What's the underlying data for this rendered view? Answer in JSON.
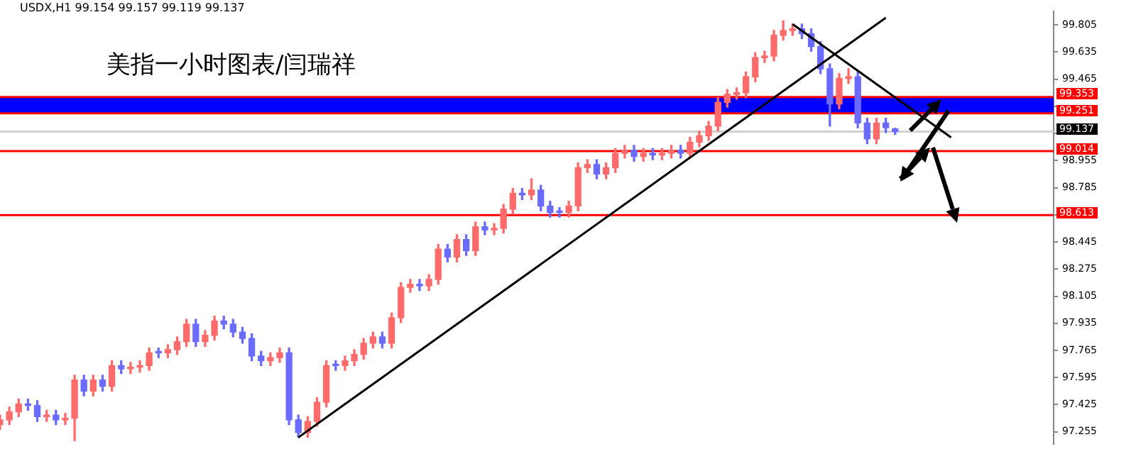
{
  "chart_data": {
    "type": "candlestick",
    "title": "美指一小时图表/闫瑞祥",
    "subtitle": "USDX,H1 99.154 99.157 99.119 99.137",
    "categories": [
      null,
      null,
      null,
      null,
      null,
      null,
      null,
      null,
      null,
      null,
      null,
      null,
      null,
      null,
      null,
      null,
      null,
      null,
      null,
      null,
      null,
      null,
      null,
      null,
      null,
      null,
      null,
      null,
      null,
      null,
      null,
      null,
      null,
      null,
      null,
      null,
      null,
      null,
      null,
      null,
      null,
      null,
      null,
      null,
      null,
      null,
      null,
      null,
      null,
      null,
      null,
      null,
      null,
      null,
      null,
      null,
      null,
      null,
      null,
      null,
      null,
      null,
      null,
      null,
      null,
      null,
      null,
      null,
      null,
      null,
      null,
      null,
      null,
      null,
      null,
      null,
      null,
      null,
      null,
      null,
      null,
      null,
      null,
      null,
      null,
      null,
      null,
      null,
      null,
      null,
      null,
      null,
      null,
      null,
      null,
      null,
      null,
      null,
      null,
      null,
      null,
      null,
      null,
      null,
      null,
      null,
      null,
      null,
      null,
      null,
      null,
      null,
      null,
      null
    ],
    "ohlc": [
      [
        97.3,
        97.36,
        97.27,
        97.33
      ],
      [
        97.33,
        97.41,
        97.3,
        97.38
      ],
      [
        97.38,
        97.46,
        97.35,
        97.43
      ],
      [
        97.43,
        97.46,
        97.39,
        97.42
      ],
      [
        97.42,
        97.45,
        97.32,
        97.35
      ],
      [
        97.35,
        97.39,
        97.32,
        97.36
      ],
      [
        97.36,
        97.39,
        97.3,
        97.33
      ],
      [
        97.33,
        97.37,
        97.3,
        97.34
      ],
      [
        97.34,
        97.61,
        97.2,
        97.58
      ],
      [
        97.58,
        97.61,
        97.48,
        97.51
      ],
      [
        97.51,
        97.61,
        97.48,
        97.58
      ],
      [
        97.58,
        97.61,
        97.51,
        97.54
      ],
      [
        97.54,
        97.7,
        97.51,
        97.67
      ],
      [
        97.67,
        97.7,
        97.62,
        97.65
      ],
      [
        97.65,
        97.69,
        97.62,
        97.66
      ],
      [
        97.66,
        97.7,
        97.63,
        97.67
      ],
      [
        97.67,
        97.78,
        97.64,
        97.75
      ],
      [
        97.75,
        97.78,
        97.72,
        97.75
      ],
      [
        97.75,
        97.8,
        97.72,
        97.77
      ],
      [
        97.77,
        97.85,
        97.74,
        97.82
      ],
      [
        97.82,
        97.96,
        97.79,
        97.93
      ],
      [
        97.93,
        97.96,
        97.79,
        97.82
      ],
      [
        97.82,
        97.89,
        97.79,
        97.86
      ],
      [
        97.86,
        97.98,
        97.83,
        97.95
      ],
      [
        97.95,
        97.98,
        97.9,
        97.93
      ],
      [
        97.93,
        97.96,
        97.85,
        97.88
      ],
      [
        97.88,
        97.91,
        97.81,
        97.84
      ],
      [
        97.84,
        97.87,
        97.7,
        97.73
      ],
      [
        97.73,
        97.76,
        97.67,
        97.7
      ],
      [
        97.7,
        97.75,
        97.67,
        97.72
      ],
      [
        97.72,
        97.78,
        97.69,
        97.75
      ],
      [
        97.75,
        97.78,
        97.3,
        97.33
      ],
      [
        97.33,
        97.36,
        97.22,
        97.25
      ],
      [
        97.25,
        97.35,
        97.22,
        97.32
      ],
      [
        97.32,
        97.47,
        97.29,
        97.44
      ],
      [
        97.44,
        97.7,
        97.41,
        97.67
      ],
      [
        97.67,
        97.7,
        97.64,
        97.67
      ],
      [
        97.67,
        97.73,
        97.64,
        97.7
      ],
      [
        97.7,
        97.77,
        97.67,
        97.74
      ],
      [
        97.74,
        97.84,
        97.71,
        97.81
      ],
      [
        97.81,
        97.88,
        97.78,
        97.85
      ],
      [
        97.85,
        97.88,
        97.78,
        97.81
      ],
      [
        97.81,
        98.0,
        97.78,
        97.97
      ],
      [
        97.97,
        98.19,
        97.94,
        98.16
      ],
      [
        98.16,
        98.21,
        98.13,
        98.18
      ],
      [
        98.18,
        98.21,
        98.14,
        98.17
      ],
      [
        98.17,
        98.24,
        98.14,
        98.21
      ],
      [
        98.21,
        98.43,
        98.18,
        98.4
      ],
      [
        98.4,
        98.43,
        98.32,
        98.35
      ],
      [
        98.35,
        98.49,
        98.32,
        98.46
      ],
      [
        98.46,
        98.49,
        98.36,
        98.39
      ],
      [
        98.39,
        98.57,
        98.36,
        98.54
      ],
      [
        98.54,
        98.57,
        98.49,
        98.52
      ],
      [
        98.52,
        98.56,
        98.49,
        98.53
      ],
      [
        98.53,
        98.68,
        98.5,
        98.65
      ],
      [
        98.65,
        98.78,
        98.62,
        98.75
      ],
      [
        98.75,
        98.78,
        98.71,
        98.74
      ],
      [
        98.74,
        98.84,
        98.71,
        98.77
      ],
      [
        98.77,
        98.8,
        98.64,
        98.67
      ],
      [
        98.67,
        98.7,
        98.6,
        98.63
      ],
      [
        98.63,
        98.66,
        98.6,
        98.63
      ],
      [
        98.63,
        98.7,
        98.6,
        98.67
      ],
      [
        98.67,
        98.94,
        98.64,
        98.91
      ],
      [
        98.91,
        98.96,
        98.88,
        98.93
      ],
      [
        98.93,
        98.96,
        98.84,
        98.87
      ],
      [
        98.87,
        98.94,
        98.84,
        98.91
      ],
      [
        98.91,
        99.03,
        98.88,
        99.0
      ],
      [
        99.0,
        99.05,
        98.97,
        99.02
      ],
      [
        99.02,
        99.05,
        98.95,
        98.98
      ],
      [
        98.98,
        99.03,
        98.95,
        99.0
      ],
      [
        99.0,
        99.03,
        98.96,
        98.99
      ],
      [
        98.99,
        99.03,
        98.96,
        99.0
      ],
      [
        99.0,
        99.05,
        98.97,
        99.02
      ],
      [
        99.02,
        99.05,
        98.97,
        99.0
      ],
      [
        99.0,
        99.1,
        98.97,
        99.07
      ],
      [
        99.07,
        99.14,
        99.04,
        99.11
      ],
      [
        99.11,
        99.2,
        99.08,
        99.17
      ],
      [
        99.17,
        99.35,
        99.14,
        99.32
      ],
      [
        99.32,
        99.4,
        99.29,
        99.37
      ],
      [
        99.37,
        99.41,
        99.34,
        99.38
      ],
      [
        99.38,
        99.51,
        99.35,
        99.48
      ],
      [
        99.48,
        99.63,
        99.45,
        99.6
      ],
      [
        99.6,
        99.64,
        99.57,
        99.61
      ],
      [
        99.61,
        99.77,
        99.58,
        99.74
      ],
      [
        99.74,
        99.83,
        99.71,
        99.77
      ],
      [
        99.77,
        99.81,
        99.74,
        99.78
      ],
      [
        99.78,
        99.81,
        99.72,
        99.75
      ],
      [
        99.75,
        99.78,
        99.64,
        99.67
      ],
      [
        99.67,
        99.7,
        99.5,
        99.53
      ],
      [
        99.53,
        99.56,
        99.17,
        99.31
      ],
      [
        99.31,
        99.5,
        99.28,
        99.47
      ],
      [
        99.47,
        99.53,
        99.44,
        99.48
      ],
      [
        99.48,
        99.51,
        99.16,
        99.19
      ],
      [
        99.19,
        99.22,
        99.06,
        99.09
      ],
      [
        99.09,
        99.22,
        99.06,
        99.19
      ],
      [
        99.19,
        99.22,
        99.13,
        99.16
      ],
      [
        99.154,
        99.157,
        99.119,
        99.137
      ],
      null,
      null,
      null,
      null,
      null,
      null,
      null,
      null,
      null,
      null,
      null,
      null,
      null,
      null,
      null,
      null,
      null
    ],
    "colors": [
      "#ff6b6b",
      "#ff6b6b",
      "#ff6b6b",
      "#6b6bff",
      "#6b6bff",
      "#ff6b6b",
      "#6b6bff",
      "#ff6b6b",
      "#ff6b6b",
      "#6b6bff",
      "#ff6b6b",
      "#6b6bff",
      "#ff6b6b",
      "#6b6bff",
      "#ff6b6b",
      "#ff6b6b",
      "#ff6b6b",
      "#6b6bff",
      "#ff6b6b",
      "#ff6b6b",
      "#ff6b6b",
      "#6b6bff",
      "#ff6b6b",
      "#ff6b6b",
      "#6b6bff",
      "#6b6bff",
      "#6b6bff",
      "#6b6bff",
      "#6b6bff",
      "#ff6b6b",
      "#ff6b6b",
      "#6b6bff",
      "#6b6bff",
      "#ff6b6b",
      "#ff6b6b",
      "#ff6b6b",
      "#6b6bff",
      "#ff6b6b",
      "#ff6b6b",
      "#ff6b6b",
      "#ff6b6b",
      "#6b6bff",
      "#ff6b6b",
      "#ff6b6b",
      "#ff6b6b",
      "#6b6bff",
      "#ff6b6b",
      "#ff6b6b",
      "#6b6bff",
      "#ff6b6b",
      "#6b6bff",
      "#ff6b6b",
      "#6b6bff",
      "#ff6b6b",
      "#ff6b6b",
      "#ff6b6b",
      "#6b6bff",
      "#ff6b6b",
      "#6b6bff",
      "#6b6bff",
      "#6b6bff",
      "#ff6b6b",
      "#ff6b6b",
      "#ff6b6b",
      "#6b6bff",
      "#ff6b6b",
      "#ff6b6b",
      "#ff6b6b",
      "#6b6bff",
      "#ff6b6b",
      "#6b6bff",
      "#ff6b6b",
      "#ff6b6b",
      "#6b6bff",
      "#ff6b6b",
      "#ff6b6b",
      "#ff6b6b",
      "#ff6b6b",
      "#ff6b6b",
      "#ff6b6b",
      "#ff6b6b",
      "#ff6b6b",
      "#ff6b6b",
      "#ff6b6b",
      "#ff6b6b",
      "#ff6b6b",
      "#6b6bff",
      "#6b6bff",
      "#6b6bff",
      "#6b6bff",
      "#ff6b6b",
      "#ff6b6b",
      "#6b6bff",
      "#6b6bff",
      "#ff6b6b",
      "#6b6bff",
      "#6b6bff",
      null,
      null,
      null,
      null,
      null,
      null,
      null,
      null,
      null,
      null,
      null,
      null,
      null,
      null,
      null,
      null,
      null
    ],
    "series": [
      {
        "type": "line",
        "color": "#000000",
        "values": [
          null,
          null,
          null,
          null,
          null,
          null,
          null,
          null,
          null,
          null,
          null,
          null,
          null,
          null,
          null,
          null,
          null,
          null,
          null,
          null,
          null,
          null,
          null,
          null,
          null,
          null,
          null,
          null,
          null,
          null,
          null,
          null,
          97.22,
          null,
          null,
          null,
          null,
          null,
          null,
          null,
          null,
          null,
          null,
          null,
          null,
          null,
          null,
          null,
          null,
          null,
          null,
          null,
          null,
          null,
          null,
          null,
          null,
          null,
          null,
          null,
          null,
          null,
          null,
          null,
          null,
          null,
          null,
          null,
          null,
          null,
          null,
          null,
          null,
          null,
          null,
          null,
          null,
          null,
          null,
          null,
          null,
          null,
          null,
          null,
          null,
          null,
          null,
          null,
          null,
          null,
          null,
          null,
          null,
          null,
          null,
          99.85,
          null,
          null,
          null,
          null,
          null,
          null,
          null,
          null,
          null,
          null,
          null,
          null,
          null,
          null,
          null,
          null,
          null,
          null
        ]
      },
      {
        "type": "line",
        "color": "#000000",
        "values": [
          null,
          null,
          null,
          null,
          null,
          null,
          null,
          null,
          null,
          null,
          null,
          null,
          null,
          null,
          null,
          null,
          null,
          null,
          null,
          null,
          null,
          null,
          null,
          null,
          null,
          null,
          null,
          null,
          null,
          null,
          null,
          null,
          null,
          null,
          null,
          null,
          null,
          null,
          null,
          null,
          null,
          null,
          null,
          null,
          null,
          null,
          null,
          null,
          null,
          null,
          null,
          null,
          null,
          null,
          null,
          null,
          null,
          null,
          null,
          null,
          null,
          null,
          null,
          null,
          null,
          null,
          null,
          null,
          null,
          null,
          null,
          null,
          null,
          null,
          null,
          null,
          null,
          null,
          null,
          null,
          null,
          null,
          null,
          null,
          null,
          99.81,
          null,
          null,
          null,
          null,
          null,
          null,
          null,
          null,
          null,
          null,
          null,
          null,
          null,
          null,
          null,
          null,
          99.1,
          null,
          null,
          null,
          null,
          null,
          null,
          null,
          null,
          null,
          null,
          null
        ]
      }
    ],
    "ylim": [
      97.18,
      99.89
    ],
    "yticks": [
      99.805,
      99.635,
      99.465,
      {
        "value": 99.295,
        "label": null
      },
      {
        "value": 99.125,
        "label": null
      },
      98.955,
      98.785,
      {
        "value": 98.615,
        "label": null
      },
      98.445,
      98.275,
      98.105,
      97.935,
      97.765,
      97.595,
      97.425,
      97.255
    ],
    "bands": [
      {
        "axis": "y",
        "from": 99.251,
        "to": 99.353,
        "color": "#0000ff"
      }
    ],
    "ref_lines": [
      {
        "axis": "y",
        "value": 99.353,
        "label": "99.353",
        "color": "#ff0000"
      },
      {
        "axis": "y",
        "value": 99.251,
        "label": "99.251",
        "color": "#ff0000"
      },
      {
        "axis": "y",
        "value": 99.137,
        "label": "99.137",
        "color": "#d0d0d0"
      },
      {
        "axis": "y",
        "value": 99.014,
        "label": "99.014",
        "color": "#ff0000"
      },
      {
        "axis": "y",
        "value": 98.613,
        "label": "98.613",
        "color": "#ff0000"
      }
    ],
    "grid": false,
    "legend": false,
    "tick_labels": "y"
  }
}
